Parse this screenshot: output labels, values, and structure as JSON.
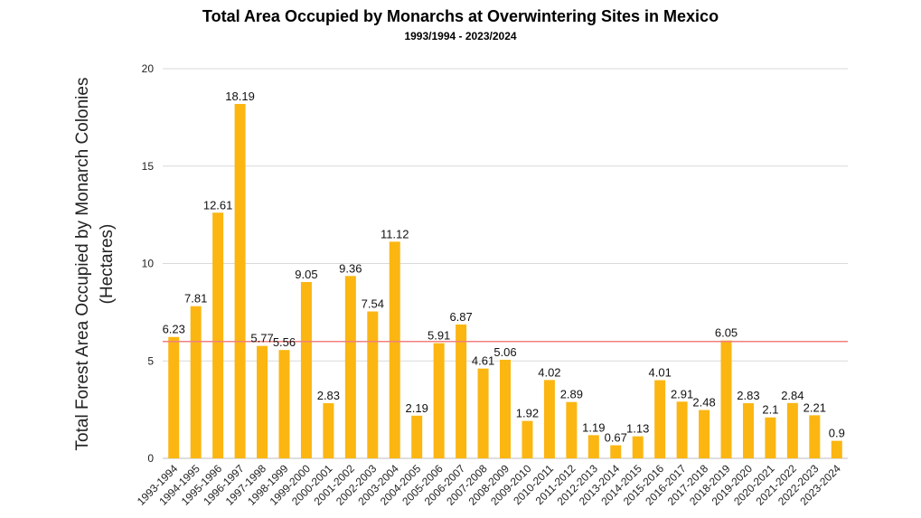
{
  "chart_data": {
    "type": "bar",
    "title": "Total Area Occupied by Monarchs at Overwintering Sites in Mexico",
    "subtitle": "1993/1994 - 2023/2024",
    "xlabel": "",
    "ylabel_lines": [
      "Total Forest Area Occupied by Monarch Colonies",
      "(Hectares)"
    ],
    "ylim": [
      0,
      20
    ],
    "yticks": [
      0,
      5,
      10,
      15,
      20
    ],
    "grid": true,
    "categories": [
      "1993-1994",
      "1994-1995",
      "1995-1996",
      "1996-1997",
      "1997-1998",
      "1998-1999",
      "1999-2000",
      "2000-2001",
      "2001-2002",
      "2002-2003",
      "2003-2004",
      "2004-2005",
      "2005-2006",
      "2006-2007",
      "2007-2008",
      "2008-2009",
      "2009-2010",
      "2010-2011",
      "2011-2012",
      "2012-2013",
      "2013-2014",
      "2014-2015",
      "2015-2016",
      "2016-2017",
      "2017-2018",
      "2018-2019",
      "2019-2020",
      "2020-2021",
      "2021-2022",
      "2022-2023",
      "2023-2024"
    ],
    "values": [
      6.23,
      7.81,
      12.61,
      18.19,
      5.77,
      5.56,
      9.05,
      2.83,
      9.36,
      7.54,
      11.12,
      2.19,
      5.91,
      6.87,
      4.61,
      5.06,
      1.92,
      4.02,
      2.89,
      1.19,
      0.67,
      1.13,
      4.01,
      2.91,
      2.48,
      6.05,
      2.83,
      2.1,
      2.84,
      2.21,
      0.9
    ],
    "value_labels": [
      "6.23",
      "7.81",
      "12.61",
      "18.19",
      "5.77",
      "5.56",
      "9.05",
      "2.83",
      "9.36",
      "7.54",
      "11.12",
      "2.19",
      "5.91",
      "6.87",
      "4.61",
      "5.06",
      "1.92",
      "4.02",
      "2.89",
      "1.19",
      "0.67",
      "1.13",
      "4.01",
      "2.91",
      "2.48",
      "6.05",
      "2.83",
      "2.1",
      "2.84",
      "2.21",
      "0.9"
    ],
    "reference_line": {
      "value": 6,
      "color": "#f08080"
    },
    "colors": {
      "bar": "#fbb612",
      "grid": "#d9d9d9",
      "axis": "#bfbfbf"
    }
  }
}
